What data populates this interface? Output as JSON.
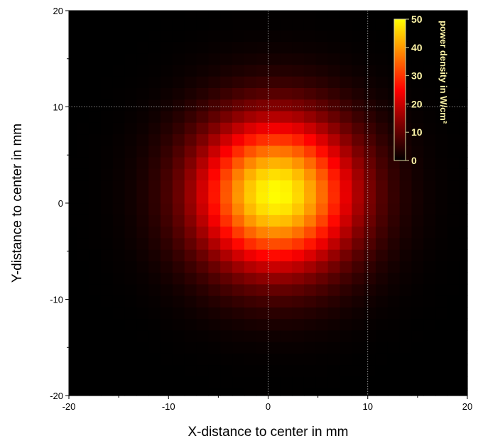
{
  "chart_data": {
    "type": "heatmap",
    "title": "",
    "xlabel": "X-distance to center in mm",
    "ylabel": "Y-distance to center in mm",
    "xlim": [
      -20,
      20
    ],
    "ylim": [
      -20,
      20
    ],
    "x_ticks": [
      "-20",
      "-10",
      "0",
      "10",
      "20"
    ],
    "y_ticks": [
      "-20",
      "-10",
      "0",
      "10",
      "20"
    ],
    "grid": "dotted at x=0, x=10 and y=10",
    "grid_step_mm": 1.2,
    "peak": {
      "x": 0.8,
      "y": 1.0,
      "value": 50
    },
    "beam_sigma_mm": 5.6,
    "colormap": "black-red-yellow",
    "colors": [
      "#000000",
      "#7a0000",
      "#ff0000",
      "#ff8000",
      "#ffff00"
    ],
    "colorbar": {
      "title": "power density in W/cm²",
      "ticks": [
        "0",
        "10",
        "20",
        "30",
        "40",
        "50"
      ],
      "range": [
        0,
        50
      ],
      "placement": "top-right inside plot"
    }
  }
}
